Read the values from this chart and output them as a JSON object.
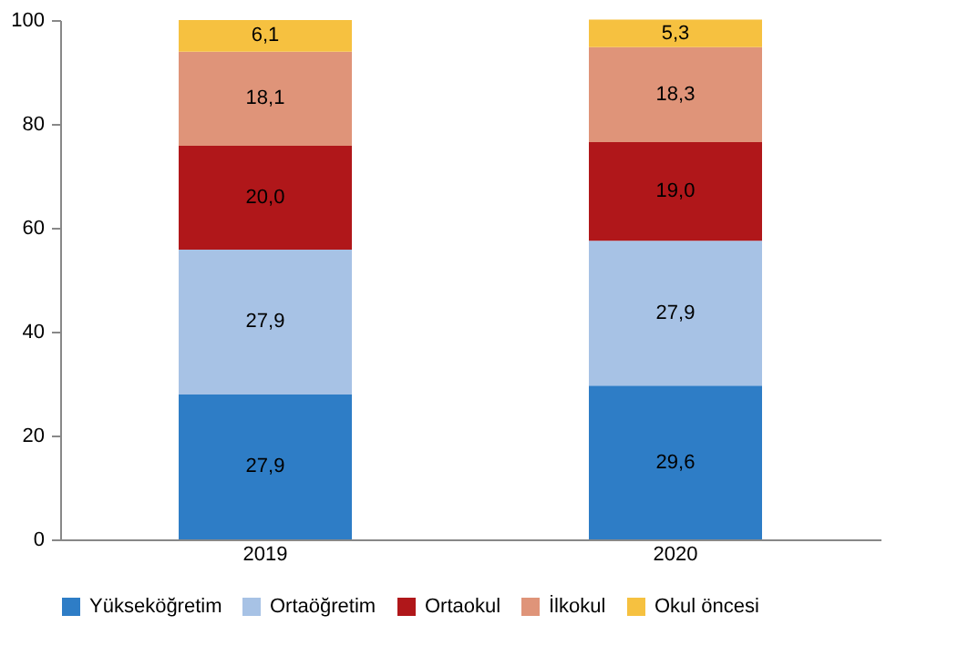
{
  "chart_data": {
    "type": "bar",
    "stacked": true,
    "categories": [
      "2019",
      "2020"
    ],
    "series": [
      {
        "name": "Yükseköğretim",
        "color": "#2e7dc6",
        "values": [
          27.9,
          29.6
        ],
        "value_labels": [
          "27,9",
          "29,6"
        ]
      },
      {
        "name": "Ortaöğretim",
        "color": "#a7c2e5",
        "values": [
          27.9,
          27.9
        ],
        "value_labels": [
          "27,9",
          "27,9"
        ]
      },
      {
        "name": "Ortaokul",
        "color": "#b0171a",
        "values": [
          20.0,
          19.0
        ],
        "value_labels": [
          "20,0",
          "19,0"
        ]
      },
      {
        "name": "İlkokul",
        "color": "#df9479",
        "values": [
          18.1,
          18.3
        ],
        "value_labels": [
          "18,1",
          "18,3"
        ]
      },
      {
        "name": "Okul öncesi",
        "color": "#f6c140",
        "values": [
          6.1,
          5.3
        ],
        "value_labels": [
          "6,1",
          "5,3"
        ]
      }
    ],
    "ylim": [
      0,
      100
    ],
    "yticks": [
      0,
      20,
      40,
      60,
      80,
      100
    ],
    "grid": false,
    "legend": "bottom"
  }
}
